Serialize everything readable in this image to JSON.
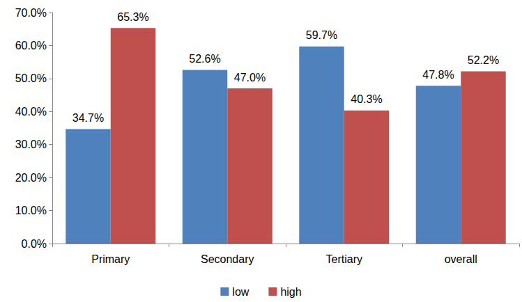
{
  "chart_data": {
    "type": "bar",
    "categories": [
      "Primary",
      "Secondary",
      "Tertiary",
      "overall"
    ],
    "series": [
      {
        "name": "low",
        "color": "#4f81bd",
        "values": [
          34.7,
          52.6,
          59.7,
          47.8
        ],
        "value_labels": [
          "34.7%",
          "52.6%",
          "59.7%",
          "47.8%"
        ]
      },
      {
        "name": "high",
        "color": "#c0504d",
        "values": [
          65.3,
          47.0,
          40.3,
          52.2
        ],
        "value_labels": [
          "65.3%",
          "47.0%",
          "40.3%",
          "52.2%"
        ]
      }
    ],
    "ylim": [
      0,
      70
    ],
    "yticks": [
      {
        "value": 0,
        "label": "0.0%"
      },
      {
        "value": 10,
        "label": "10.0%"
      },
      {
        "value": 20,
        "label": "20.0%"
      },
      {
        "value": 30,
        "label": "30.0%"
      },
      {
        "value": 40,
        "label": "40.0%"
      },
      {
        "value": 50,
        "label": "50.0%"
      },
      {
        "value": 60,
        "label": "60.0%"
      },
      {
        "value": 70,
        "label": "70.0%"
      }
    ],
    "grid": false,
    "legend": "bottom",
    "data_labels": true
  }
}
